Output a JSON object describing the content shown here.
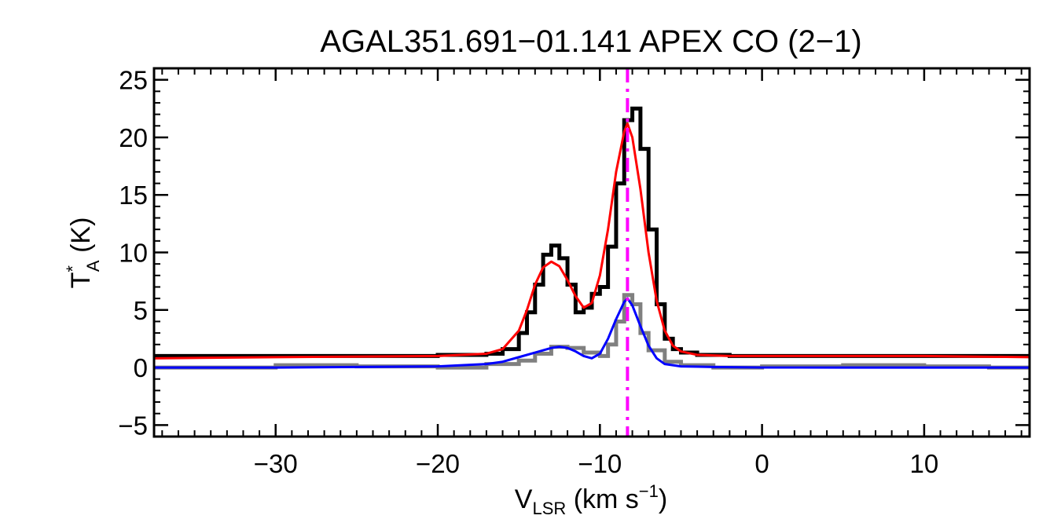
{
  "chart_data": {
    "type": "line",
    "title": "AGAL351.691−01.141   APEX CO (2−1)",
    "xlabel": {
      "main": "V",
      "sub": "LSR",
      "unit_pre": " (km s",
      "sup": "−1",
      "unit_post": ")"
    },
    "ylabel": {
      "main": "T",
      "sup": "*",
      "sub": "A",
      "unit": " (K)"
    },
    "xlim": [
      -37.5,
      16.5
    ],
    "ylim": [
      -6,
      26
    ],
    "x_ticks": [
      -30,
      -20,
      -10,
      0,
      10
    ],
    "x_tick_labels": [
      "−30",
      "−20",
      "−10",
      "0",
      "10"
    ],
    "y_ticks": [
      -5,
      0,
      5,
      10,
      15,
      20,
      25
    ],
    "y_tick_labels": [
      "−5",
      "0",
      "5",
      "10",
      "15",
      "20",
      "25"
    ],
    "x_minor_step": 1,
    "y_minor_step": 1,
    "grid": false,
    "vline": {
      "x": -8.3,
      "color": "#ff00ff",
      "style": "dash-dot"
    },
    "series": [
      {
        "color": "#000000",
        "style": "histogram",
        "x": [
          -37.5,
          -30,
          -25,
          -20,
          -17,
          -16,
          -15,
          -14.5,
          -14,
          -13.5,
          -13,
          -12.5,
          -12,
          -11.5,
          -11,
          -10.5,
          -10,
          -9.5,
          -9,
          -8.5,
          -8,
          -7.5,
          -7,
          -6.5,
          -6,
          -5.5,
          -5,
          -4,
          -2,
          0,
          5,
          10,
          16.5
        ],
        "values": [
          1.0,
          1.0,
          1.0,
          1.1,
          1.2,
          1.6,
          3.0,
          4.8,
          7.2,
          9.8,
          10.6,
          9.5,
          7.2,
          4.8,
          5.2,
          6.4,
          7.0,
          10.5,
          16.0,
          21.5,
          22.5,
          19.0,
          12.0,
          5.5,
          2.5,
          1.6,
          1.3,
          1.1,
          1.0,
          1.0,
          1.0,
          1.0,
          1.0
        ]
      },
      {
        "color": "#ff0000",
        "style": "line",
        "x": [
          -37.5,
          -30,
          -25,
          -20,
          -17,
          -16,
          -15,
          -14.5,
          -14,
          -13.5,
          -13,
          -12.5,
          -12,
          -11.5,
          -11,
          -10.5,
          -10,
          -9.5,
          -9,
          -8.5,
          -8.3,
          -8,
          -7.5,
          -7,
          -6.5,
          -6,
          -5.5,
          -5,
          -4,
          -2,
          0,
          5,
          10,
          16.5
        ],
        "values": [
          0.8,
          0.9,
          0.95,
          1.0,
          1.2,
          1.6,
          3.2,
          5.0,
          7.2,
          8.7,
          9.2,
          8.8,
          7.6,
          6.2,
          5.2,
          5.6,
          8.0,
          12.0,
          17.0,
          20.5,
          21.2,
          20.0,
          15.5,
          10.0,
          5.8,
          3.2,
          1.9,
          1.4,
          1.1,
          1.0,
          1.0,
          1.0,
          1.0,
          0.9
        ]
      },
      {
        "color": "#808080",
        "style": "histogram",
        "x": [
          -37.5,
          -30,
          -25,
          -20,
          -17,
          -15,
          -14,
          -13,
          -12,
          -11,
          -10,
          -9.5,
          -9,
          -8.5,
          -8,
          -7.5,
          -7,
          -6,
          -5,
          -3,
          0,
          5,
          10,
          14,
          16.5
        ],
        "values": [
          0.0,
          0.2,
          0.1,
          0.0,
          0.3,
          0.6,
          1.2,
          1.8,
          1.7,
          1.3,
          1.0,
          2.0,
          4.0,
          6.3,
          5.5,
          3.0,
          1.5,
          0.5,
          0.2,
          0.0,
          0.1,
          0.2,
          0.1,
          0.0,
          0.1
        ]
      },
      {
        "color": "#0000ff",
        "style": "line",
        "x": [
          -37.5,
          -30,
          -25,
          -20,
          -17,
          -16,
          -15,
          -14,
          -13,
          -12.5,
          -12,
          -11.5,
          -11,
          -10.5,
          -10,
          -9.5,
          -9,
          -8.5,
          -8.3,
          -8,
          -7.5,
          -7,
          -6.5,
          -6,
          -5,
          -3,
          0,
          5,
          10,
          16.5
        ],
        "values": [
          0.0,
          0.0,
          0.05,
          0.1,
          0.3,
          0.5,
          0.9,
          1.3,
          1.7,
          1.8,
          1.7,
          1.4,
          1.0,
          0.8,
          1.2,
          2.5,
          4.2,
          5.7,
          6.0,
          5.4,
          3.6,
          1.9,
          0.8,
          0.3,
          0.1,
          0.05,
          0.0,
          0.0,
          0.0,
          0.0
        ]
      }
    ]
  }
}
